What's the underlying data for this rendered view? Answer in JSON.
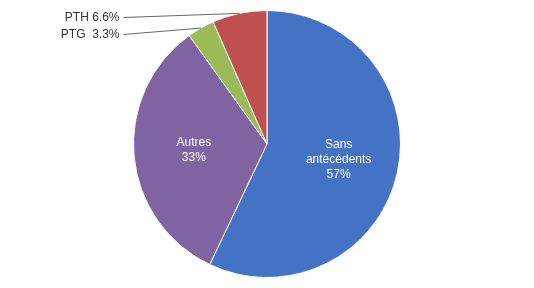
{
  "chart_data": {
    "type": "pie",
    "categories": [
      "Sans\nantécédents",
      "Autres",
      "PTG",
      "PTH"
    ],
    "values": [
      57,
      33,
      3.3,
      6.6
    ],
    "value_labels": [
      "Sans\nantécédents\n57%",
      "Autres\n33%",
      "PTG  3.3%",
      "PTH 6.6%"
    ],
    "colors": [
      "#4472C4",
      "#8064A2",
      "#9BBB59",
      "#C0504D"
    ],
    "data_labels": true
  }
}
